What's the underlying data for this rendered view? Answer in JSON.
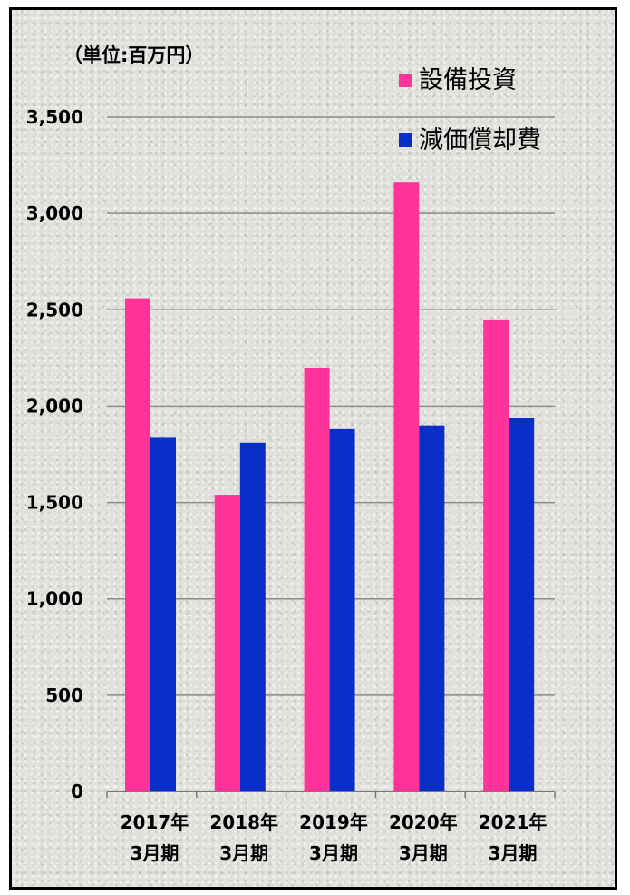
{
  "chart_data": {
    "type": "bar",
    "unit_label": "（単位:百万円）",
    "categories": [
      [
        "2017年",
        "3月期"
      ],
      [
        "2018年",
        "3月期"
      ],
      [
        "2019年",
        "3月期"
      ],
      [
        "2020年",
        "3月期"
      ],
      [
        "2021年",
        "3月期"
      ]
    ],
    "series": [
      {
        "name": "設備投資",
        "color": "#ff3399",
        "values": [
          2560,
          1540,
          2200,
          3160,
          2450
        ]
      },
      {
        "name": "減価償却費",
        "color": "#0a2fc8",
        "values": [
          1840,
          1810,
          1880,
          1900,
          1940
        ]
      }
    ],
    "ylim": [
      0,
      3500
    ],
    "yticks": [
      "0",
      "500",
      "1,000",
      "1,500",
      "2,000",
      "2,500",
      "3,000",
      "3,500"
    ],
    "grid": true,
    "legend_position": "top-right"
  }
}
